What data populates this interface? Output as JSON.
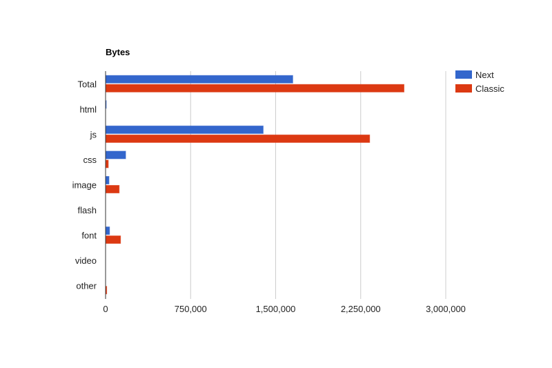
{
  "chart_data": {
    "type": "bar",
    "orientation": "horizontal",
    "title": "Bytes",
    "xlabel": "",
    "ylabel": "",
    "categories": [
      "Total",
      "html",
      "js",
      "css",
      "image",
      "flash",
      "font",
      "video",
      "other"
    ],
    "series": [
      {
        "name": "Next",
        "color": "#3366cc",
        "values": [
          1651000,
          2000,
          1390000,
          177000,
          30000,
          0,
          35000,
          0,
          0
        ]
      },
      {
        "name": "Classic",
        "color": "#dc3912",
        "values": [
          2632000,
          0,
          2329000,
          24000,
          120000,
          0,
          132000,
          0,
          10000
        ]
      }
    ],
    "xlim": [
      0,
      3000000
    ],
    "xticks": [
      0,
      750000,
      1500000,
      2250000,
      3000000
    ],
    "xtick_labels": [
      "0",
      "750,000",
      "1,500,000",
      "2,250,000",
      "3,000,000"
    ],
    "grid": true,
    "legend": "right"
  }
}
